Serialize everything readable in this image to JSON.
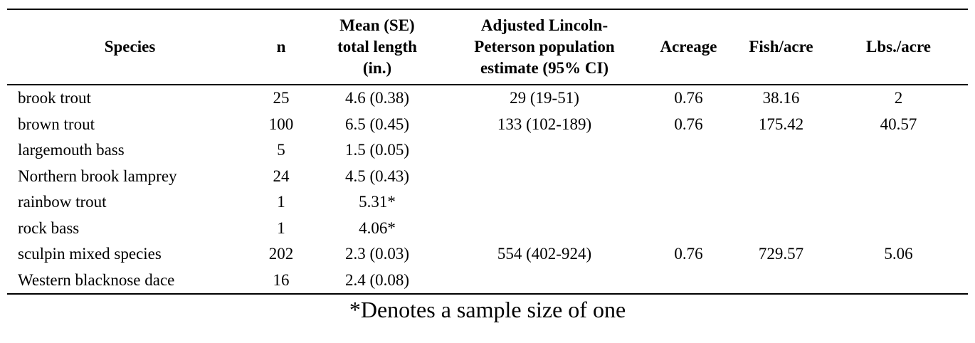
{
  "page": {
    "background_color": "#ffffff",
    "text_color": "#000000",
    "rule_color": "#000000"
  },
  "table": {
    "headers": [
      "Species",
      "n",
      "Mean (SE)\ntotal length\n(in.)",
      "Adjusted Lincoln-\nPeterson population\nestimate (95% CI)",
      "Acreage",
      "Fish/acre",
      "Lbs./acre"
    ],
    "rows": [
      [
        "brook trout",
        "25",
        "4.6 (0.38)",
        "29 (19-51)",
        "0.76",
        "38.16",
        "2"
      ],
      [
        "brown trout",
        "100",
        "6.5 (0.45)",
        "133 (102-189)",
        "0.76",
        "175.42",
        "40.57"
      ],
      [
        "largemouth bass",
        "5",
        "1.5 (0.05)",
        "",
        "",
        "",
        ""
      ],
      [
        "Northern brook lamprey",
        "24",
        "4.5 (0.43)",
        "",
        "",
        "",
        ""
      ],
      [
        "rainbow trout",
        "1",
        "5.31*",
        "",
        "",
        "",
        ""
      ],
      [
        "rock bass",
        "1",
        "4.06*",
        "",
        "",
        "",
        ""
      ],
      [
        "sculpin mixed species",
        "202",
        "2.3 (0.03)",
        "554 (402-924)",
        "0.76",
        "729.57",
        "5.06"
      ],
      [
        "Western blacknose dace",
        "16",
        "2.4 (0.08)",
        "",
        "",
        "",
        ""
      ]
    ]
  },
  "footnote": {
    "text": "*Denotes a sample size of one"
  }
}
